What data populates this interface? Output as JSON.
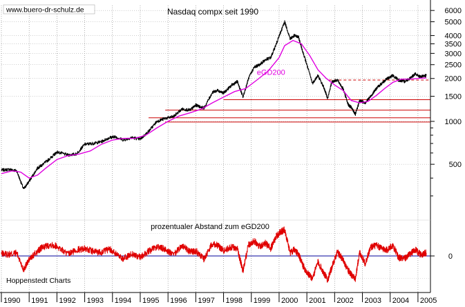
{
  "header": {
    "watermark": "www.buero-dr-schulz.de",
    "credit": "Hoppenstedt Charts"
  },
  "chart_data": [
    {
      "type": "line",
      "title": "Nasdaq compx seit 1990",
      "y_scale": "log",
      "ylim": [
        290,
        6500
      ],
      "xlim": [
        1990.0,
        2005.45
      ],
      "grid": true,
      "y_ticks": [
        500,
        1000,
        1500,
        2000,
        2500,
        3000,
        3500,
        4000,
        5000,
        6000
      ],
      "x_ticks": [
        1990,
        1991,
        1992,
        1993,
        1994,
        1995,
        1996,
        1997,
        1998,
        1999,
        2000,
        2001,
        2002,
        2003,
        2004,
        2005
      ],
      "x_tick_labels": [
        "1990",
        "1991",
        "1992",
        "1993",
        "1994",
        "1995",
        "1996",
        "1997",
        "1998",
        "1999",
        "2000",
        "2001",
        "2002",
        "2003",
        "2004",
        "2005"
      ],
      "series": [
        {
          "color": "#000000",
          "x": [
            1990.0,
            1990.3,
            1990.55,
            1990.8,
            1991.0,
            1991.3,
            1991.5,
            1991.8,
            1992.0,
            1992.4,
            1992.7,
            1993.0,
            1993.3,
            1993.6,
            1993.9,
            1994.1,
            1994.4,
            1994.7,
            1995.0,
            1995.3,
            1995.6,
            1995.9,
            1996.2,
            1996.5,
            1996.8,
            1997.0,
            1997.3,
            1997.6,
            1997.8,
            1998.0,
            1998.3,
            1998.5,
            1998.7,
            1998.9,
            1999.1,
            1999.3,
            1999.5,
            1999.7,
            1999.9,
            2000.05,
            2000.2,
            2000.4,
            2000.55,
            2000.7,
            2000.85,
            2001.0,
            2001.2,
            2001.4,
            2001.6,
            2001.75,
            2001.9,
            2002.1,
            2002.3,
            2002.5,
            2002.6,
            2002.75,
            2002.9,
            2003.1,
            2003.3,
            2003.5,
            2003.7,
            2003.9,
            2004.1,
            2004.3,
            2004.5,
            2004.7,
            2004.9,
            2005.1,
            2005.3
          ],
          "y": [
            455,
            460,
            450,
            335,
            380,
            470,
            500,
            560,
            610,
            580,
            590,
            690,
            700,
            720,
            770,
            780,
            740,
            770,
            750,
            850,
            1000,
            1050,
            1080,
            1220,
            1200,
            1300,
            1240,
            1600,
            1650,
            1580,
            1800,
            1900,
            1480,
            2000,
            2400,
            2500,
            2700,
            2800,
            3500,
            4200,
            5000,
            3800,
            4000,
            3900,
            3100,
            2500,
            1850,
            2100,
            1750,
            1450,
            1900,
            1950,
            1700,
            1300,
            1250,
            1120,
            1400,
            1350,
            1500,
            1700,
            1850,
            2000,
            2100,
            1950,
            1900,
            2000,
            2150,
            2050,
            2100
          ]
        },
        {
          "name": "eGD200",
          "color": "#e000e0",
          "x": [
            1990.0,
            1990.4,
            1990.7,
            1991.0,
            1991.3,
            1991.6,
            1992.0,
            1992.4,
            1992.8,
            1993.2,
            1993.6,
            1994.0,
            1994.4,
            1994.8,
            1995.2,
            1995.6,
            1996.0,
            1996.4,
            1996.8,
            1997.2,
            1997.6,
            1998.0,
            1998.4,
            1998.8,
            1999.2,
            1999.6,
            2000.0,
            2000.2,
            2000.5,
            2000.8,
            2001.1,
            2001.4,
            2001.7,
            2002.0,
            2002.3,
            2002.6,
            2002.9,
            2003.2,
            2003.5,
            2003.8,
            2004.1,
            2004.4,
            2004.7,
            2005.0,
            2005.3
          ],
          "y": [
            430,
            450,
            440,
            400,
            420,
            470,
            540,
            575,
            590,
            620,
            690,
            740,
            760,
            760,
            800,
            900,
            1000,
            1090,
            1150,
            1220,
            1350,
            1480,
            1620,
            1700,
            1950,
            2250,
            2800,
            3400,
            3700,
            3500,
            2900,
            2300,
            2000,
            1800,
            1650,
            1400,
            1350,
            1380,
            1520,
            1700,
            1880,
            1980,
            1980,
            2000,
            2020
          ]
        }
      ],
      "annotations": [
        {
          "text": "eGD200",
          "x": 1999.2,
          "y": 2050
        }
      ],
      "reference_lines": [
        {
          "y": 1950,
          "x_start": 2001.8,
          "x_end": 2005.45,
          "color": "#cc0000",
          "style": "dashed"
        },
        {
          "y": 1420,
          "x_start": 1998.0,
          "x_end": 2005.45,
          "color": "#cc0000",
          "style": "solid"
        },
        {
          "y": 1200,
          "x_start": 1995.9,
          "x_end": 2005.45,
          "color": "#cc0000",
          "style": "solid"
        },
        {
          "y": 1060,
          "x_start": 1995.3,
          "x_end": 2005.45,
          "color": "#cc0000",
          "style": "solid"
        },
        {
          "y": 990,
          "x_start": 1995.9,
          "x_end": 2005.45,
          "color": "#cc0000",
          "style": "solid"
        }
      ]
    },
    {
      "type": "line",
      "title": "prozentualer Abstand zum eGD200",
      "ylim": [
        -45,
        45
      ],
      "xlim": [
        1990.0,
        2005.45
      ],
      "grid": true,
      "y_ticks": [
        0
      ],
      "y_tick_labels": [
        "0"
      ],
      "zero_line_color": "#000099",
      "series": [
        {
          "color": "#e00000",
          "x": [
            1990.0,
            1990.3,
            1990.55,
            1990.8,
            1991.0,
            1991.3,
            1991.5,
            1991.8,
            1992.0,
            1992.4,
            1992.7,
            1993.0,
            1993.3,
            1993.6,
            1993.9,
            1994.1,
            1994.4,
            1994.7,
            1995.0,
            1995.3,
            1995.6,
            1995.9,
            1996.2,
            1996.5,
            1996.8,
            1997.0,
            1997.3,
            1997.6,
            1997.8,
            1998.0,
            1998.3,
            1998.5,
            1998.7,
            1998.9,
            1999.1,
            1999.3,
            1999.5,
            1999.7,
            1999.9,
            2000.05,
            2000.2,
            2000.4,
            2000.55,
            2000.7,
            2000.85,
            2001.0,
            2001.2,
            2001.4,
            2001.6,
            2001.75,
            2001.9,
            2002.1,
            2002.3,
            2002.5,
            2002.6,
            2002.75,
            2002.9,
            2003.1,
            2003.3,
            2003.5,
            2003.7,
            2003.9,
            2004.1,
            2004.3,
            2004.5,
            2004.7,
            2004.9,
            2005.1,
            2005.3
          ],
          "y": [
            3,
            2,
            4,
            -18,
            -5,
            6,
            12,
            15,
            13,
            2,
            8,
            10,
            6,
            5,
            9,
            4,
            -4,
            3,
            -2,
            6,
            12,
            9,
            1,
            14,
            5,
            7,
            -4,
            17,
            14,
            7,
            12,
            9,
            -20,
            15,
            20,
            13,
            17,
            10,
            26,
            32,
            35,
            4,
            8,
            2,
            -12,
            -22,
            -30,
            -8,
            -22,
            -32,
            -15,
            5,
            -5,
            -20,
            -25,
            -30,
            5,
            -10,
            12,
            14,
            10,
            8,
            14,
            -2,
            -4,
            2,
            8,
            2,
            4
          ]
        }
      ]
    }
  ]
}
